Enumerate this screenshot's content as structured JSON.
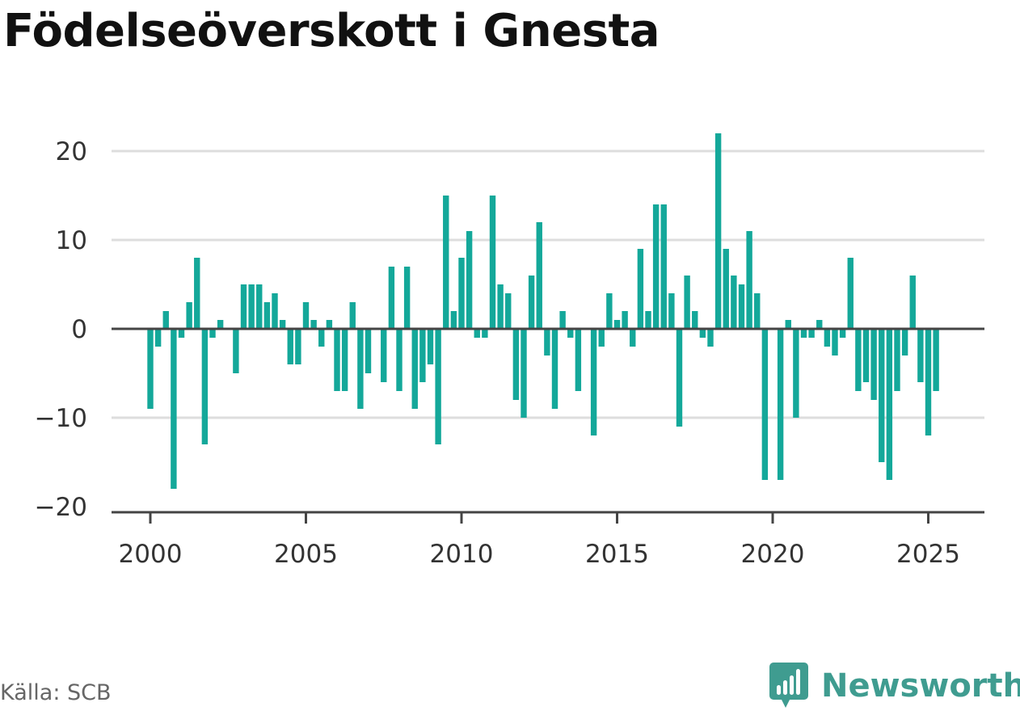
{
  "title": "Födelseöverskott i Gnesta",
  "source": "Källa: SCB",
  "brand": {
    "name": "Newsworthy",
    "icon": "newsworthy-logo-icon",
    "color": "#3f9c90"
  },
  "colors": {
    "bar": "#14a89a",
    "grid": "#dddddd",
    "zero": "#444444",
    "axis": "#444444",
    "text": "#333333"
  },
  "chart_data": {
    "type": "bar",
    "title": "Födelseöverskott i Gnesta",
    "xlabel": "",
    "ylabel": "",
    "ylim": [
      -20,
      22
    ],
    "xlim": [
      2000,
      2026.25
    ],
    "yticks": [
      20,
      10,
      0,
      -10,
      -20
    ],
    "ytick_labels": [
      "20",
      "10",
      "0",
      "−10",
      "−20"
    ],
    "xticks": [
      2000,
      2005,
      2010,
      2015,
      2020,
      2025
    ],
    "xtick_labels": [
      "2000",
      "2005",
      "2010",
      "2015",
      "2020",
      "2025"
    ],
    "frequency": "quarterly",
    "start_year": 2000,
    "grid": true,
    "series": [
      {
        "values": [
          -9,
          -2,
          2,
          -18,
          -1,
          3,
          8,
          -13,
          -1,
          1,
          0,
          -5,
          5,
          5,
          5,
          3,
          4,
          1,
          -4,
          -4,
          3,
          1,
          -2,
          1,
          -7,
          -7,
          3,
          -9,
          -5,
          0,
          -6,
          7,
          -7,
          7,
          -9,
          -6,
          -4,
          -13,
          15,
          2,
          8,
          11,
          -1,
          -1,
          15,
          5,
          4,
          -8,
          -10,
          6,
          12,
          -3,
          -9,
          2,
          -1,
          -7,
          0,
          -12,
          -2,
          4,
          1,
          2,
          -2,
          9,
          2,
          14,
          14,
          4,
          -11,
          6,
          2,
          -1,
          -2,
          22,
          9,
          6,
          5,
          11,
          4,
          -17,
          0,
          -17,
          1,
          -10,
          -1,
          -1,
          1,
          -2,
          -3,
          -1,
          8,
          -7,
          -6,
          -8,
          -15,
          -17,
          -7,
          -3,
          6,
          -6,
          -12,
          -7
        ]
      }
    ]
  }
}
